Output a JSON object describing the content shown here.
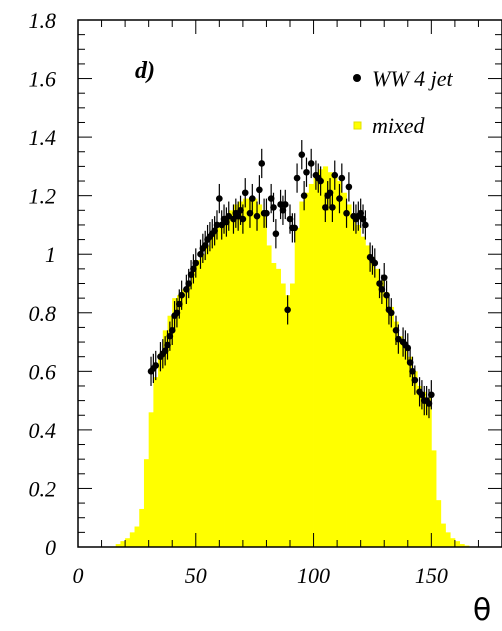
{
  "chart_data": {
    "type": "bar",
    "panel_label": "d)",
    "xlabel": "θ",
    "ylabel": "",
    "xlim": [
      0,
      180
    ],
    "ylim": [
      0,
      1.8
    ],
    "x_ticks": [
      0,
      50,
      100,
      150
    ],
    "x_tick_labels": [
      "0",
      "50",
      "100",
      "150"
    ],
    "y_ticks": [
      0,
      0.2,
      0.4,
      0.6,
      0.8,
      1.0,
      1.2,
      1.4,
      1.6,
      1.8
    ],
    "y_tick_labels": [
      "0",
      "0.2",
      "0.4",
      "0.6",
      "0.8",
      "1",
      "1.2",
      "1.4",
      "1.6",
      "1.8"
    ],
    "legend_position": "top-right",
    "colors": {
      "histogram": "#ffff00",
      "points": "#000000"
    },
    "series": [
      {
        "name": "mixed",
        "kind": "histogram",
        "bin_width": 2,
        "bins_x": [
          16,
          18,
          20,
          22,
          24,
          26,
          28,
          30,
          32,
          34,
          36,
          38,
          40,
          42,
          44,
          46,
          48,
          50,
          52,
          54,
          56,
          58,
          60,
          62,
          64,
          66,
          68,
          70,
          72,
          74,
          76,
          78,
          80,
          82,
          84,
          86,
          88,
          90,
          92,
          94,
          96,
          98,
          100,
          102,
          104,
          106,
          108,
          110,
          112,
          114,
          116,
          118,
          120,
          122,
          124,
          126,
          128,
          130,
          132,
          134,
          136,
          138,
          140,
          142,
          144,
          146,
          148,
          150,
          152,
          154,
          156,
          158,
          160,
          162,
          164
        ],
        "values": [
          0.01,
          0.02,
          0.03,
          0.05,
          0.07,
          0.13,
          0.3,
          0.46,
          0.58,
          0.66,
          0.74,
          0.79,
          0.85,
          0.86,
          0.88,
          0.91,
          0.95,
          0.98,
          1.0,
          1.03,
          1.06,
          1.09,
          1.11,
          1.13,
          1.15,
          1.17,
          1.18,
          1.19,
          1.19,
          1.19,
          1.17,
          1.13,
          1.03,
          0.97,
          0.95,
          0.9,
          0.86,
          0.9,
          1.09,
          1.18,
          1.21,
          1.24,
          1.27,
          1.29,
          1.3,
          1.28,
          1.27,
          1.25,
          1.21,
          1.17,
          1.13,
          1.1,
          1.06,
          1.03,
          0.99,
          0.95,
          0.91,
          0.87,
          0.82,
          0.77,
          0.72,
          0.68,
          0.65,
          0.6,
          0.55,
          0.53,
          0.51,
          0.33,
          0.16,
          0.08,
          0.05,
          0.03,
          0.02,
          0.01,
          0.005
        ]
      },
      {
        "name": "WW 4 jet",
        "kind": "points",
        "x": [
          31,
          32,
          33,
          35,
          36,
          37,
          38,
          39,
          40,
          41,
          42,
          43,
          44,
          46,
          47,
          48,
          49,
          50,
          52,
          53,
          54,
          55,
          56,
          57,
          58,
          59,
          60,
          61,
          62,
          63,
          64,
          66,
          67,
          68,
          69,
          70,
          71,
          73,
          74,
          76,
          77,
          78,
          79,
          80,
          82,
          83,
          84,
          86,
          87,
          88,
          89,
          90,
          91,
          92,
          93,
          95,
          96,
          97,
          99,
          101,
          102,
          103,
          105,
          106,
          107,
          108,
          109,
          111,
          112,
          114,
          115,
          117,
          118,
          119,
          120,
          121,
          122,
          124,
          125,
          126,
          128,
          129,
          130,
          131,
          132,
          133,
          135,
          136,
          138,
          139,
          140,
          141,
          142,
          143,
          145,
          146,
          147,
          148,
          149,
          150
        ],
        "y": [
          0.6,
          0.61,
          0.62,
          0.65,
          0.66,
          0.67,
          0.69,
          0.72,
          0.74,
          0.79,
          0.8,
          0.83,
          0.86,
          0.88,
          0.9,
          0.93,
          0.95,
          0.97,
          1.0,
          1.02,
          1.03,
          1.05,
          1.06,
          1.07,
          1.08,
          1.1,
          1.19,
          1.1,
          1.12,
          1.11,
          1.13,
          1.12,
          1.14,
          1.13,
          1.15,
          1.12,
          1.21,
          1.14,
          1.19,
          1.13,
          1.22,
          1.31,
          1.14,
          1.14,
          1.19,
          1.16,
          1.07,
          1.17,
          1.15,
          1.17,
          0.81,
          1.12,
          1.09,
          1.09,
          1.26,
          1.34,
          1.2,
          1.28,
          1.31,
          1.27,
          1.26,
          1.25,
          1.16,
          1.2,
          1.21,
          1.16,
          1.27,
          1.19,
          1.26,
          1.14,
          1.23,
          1.13,
          1.12,
          1.13,
          1.14,
          1.12,
          1.1,
          0.99,
          0.98,
          0.97,
          0.9,
          0.88,
          0.92,
          0.86,
          0.81,
          0.8,
          0.74,
          0.71,
          0.7,
          0.69,
          0.68,
          0.63,
          0.6,
          0.57,
          0.53,
          0.52,
          0.5,
          0.5,
          0.49,
          0.52
        ],
        "yerr": 0.05
      }
    ]
  }
}
